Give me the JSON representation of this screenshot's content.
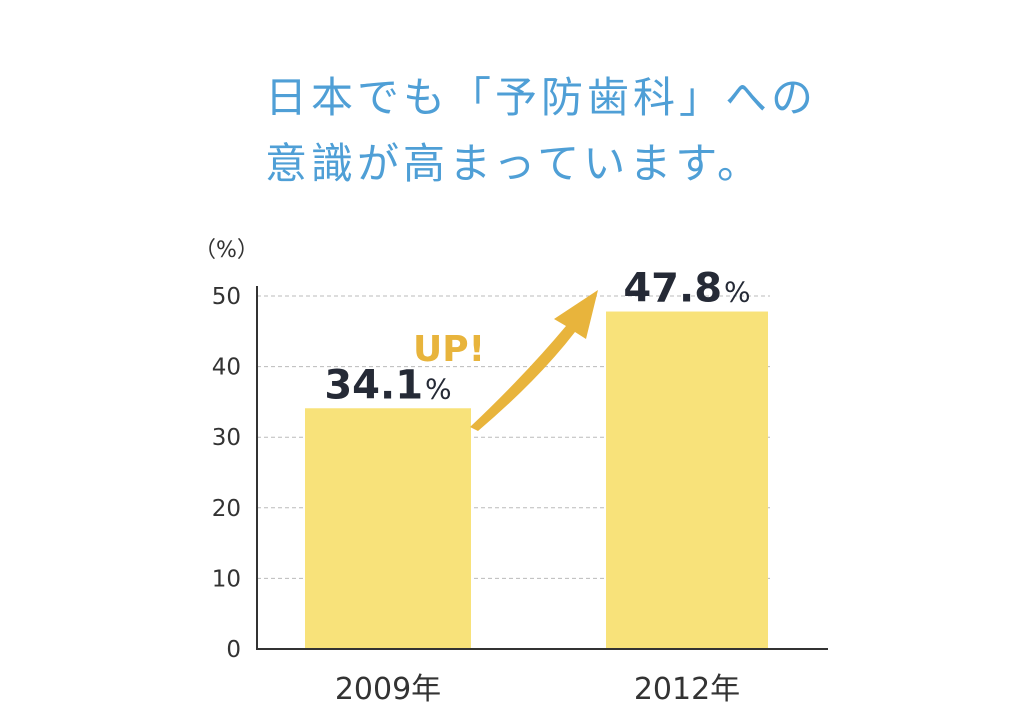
{
  "title": {
    "line1": "日本でも「予防歯科」への",
    "line2": "意識が高まっています。"
  },
  "colors": {
    "title": "#4f9fd6",
    "bar": "#f8e27a",
    "arrow": "#e8b43c",
    "value_text": "#252a36",
    "axis": "#333333",
    "grid": "#bbbbbb"
  },
  "chart_data": {
    "type": "bar",
    "unit_label": "（%）",
    "categories": [
      "2009年",
      "2012年"
    ],
    "values": [
      34.1,
      47.8
    ],
    "value_labels": [
      {
        "number": "34.1",
        "unit": "%"
      },
      {
        "number": "47.8",
        "unit": "%"
      }
    ],
    "annotation": "UP!",
    "ylim": [
      0,
      50
    ],
    "yticks": [
      0,
      10,
      20,
      30,
      40,
      50
    ],
    "grid": true
  }
}
